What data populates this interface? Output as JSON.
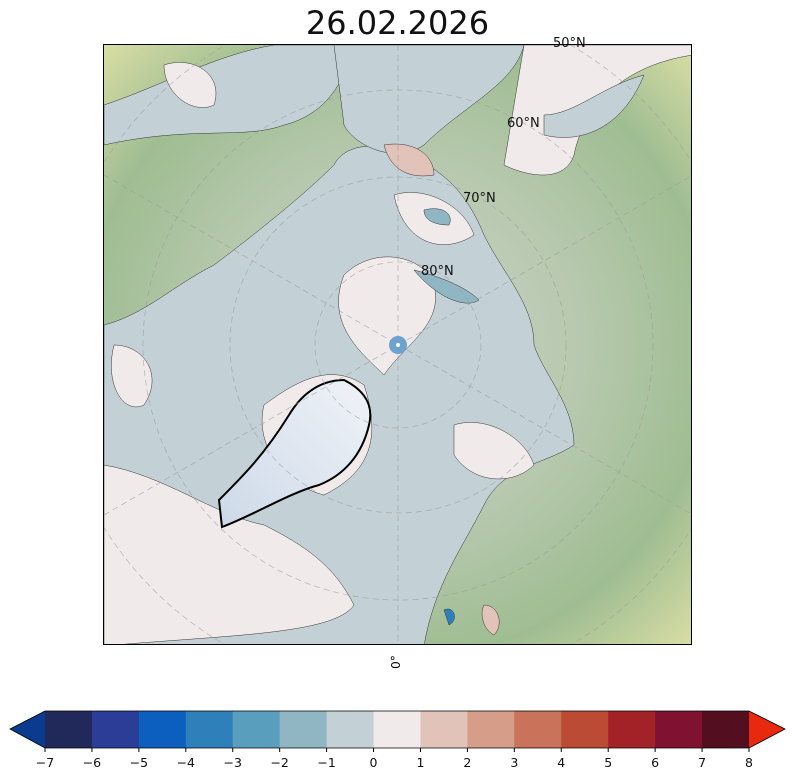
{
  "title": "26.02.2026",
  "map": {
    "projection": "north-polar-stereographic",
    "lat_labels": [
      "50°N",
      "60°N",
      "70°N",
      "80°N"
    ],
    "lon_label": "0°",
    "land_color": "#9fb98f",
    "ice_sheet_color": "#e4ebf3",
    "grid_style": "dashed gray"
  },
  "colorbar": {
    "ticks": [
      "−7",
      "−6",
      "−5",
      "−4",
      "−3",
      "−2",
      "−1",
      "0",
      "1",
      "2",
      "3",
      "4",
      "5",
      "6",
      "7",
      "8"
    ],
    "bin_colors": [
      "#20295a",
      "#2b3d96",
      "#0d5fbf",
      "#2e80bb",
      "#5a9ebd",
      "#90b6c4",
      "#c3d0d5",
      "#f0eaea",
      "#e2c3b9",
      "#d69d89",
      "#c8735a",
      "#bb4b35",
      "#a32228",
      "#7f1230",
      "#530f1f"
    ],
    "under_color": "#0b3b8e",
    "over_color": "#e8290f",
    "extend": "both"
  }
}
